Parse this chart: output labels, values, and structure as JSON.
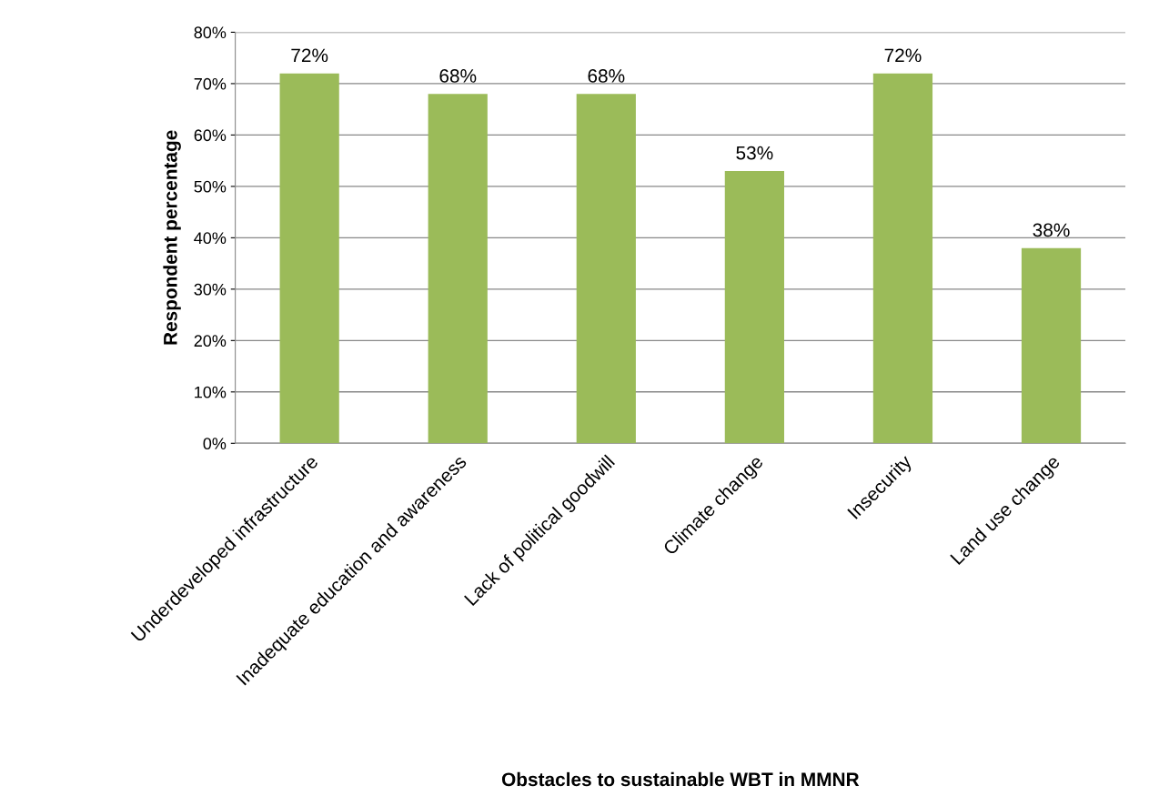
{
  "chart_data": {
    "type": "bar",
    "xlabel": "Obstacles to sustainable WBT in MMNR",
    "ylabel": "Respondent percentage",
    "categories": [
      "Underdeveloped infrastructure",
      "Inadequate education and awareness",
      "Lack of political goodwill",
      "Climate change",
      "Insecurity",
      "Land use change"
    ],
    "values": [
      72,
      68,
      68,
      53,
      72,
      38
    ],
    "value_labels": [
      "72%",
      "68%",
      "68%",
      "53%",
      "72%",
      "38%"
    ],
    "color": "#9bbb59",
    "ylim": [
      0,
      80
    ],
    "yticks": [
      {
        "value": 0,
        "label": "0%"
      },
      {
        "value": 10,
        "label": "10%"
      },
      {
        "value": 20,
        "label": "20%"
      },
      {
        "value": 30,
        "label": "30%"
      },
      {
        "value": 40,
        "label": "40%"
      },
      {
        "value": 50,
        "label": "50%"
      },
      {
        "value": 60,
        "label": "60%"
      },
      {
        "value": 70,
        "label": "70%"
      },
      {
        "value": 80,
        "label": "80%"
      }
    ],
    "grid": "y",
    "legend": false
  }
}
